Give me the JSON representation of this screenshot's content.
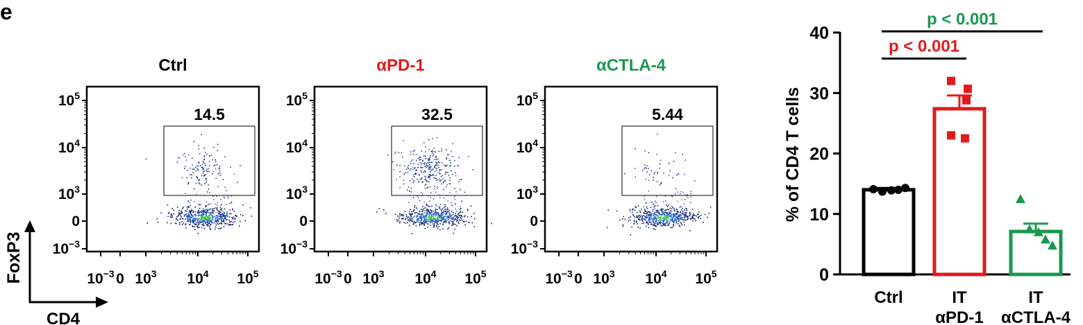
{
  "panel_letter": "e",
  "axis_arrows": {
    "y_label": "FoxP3",
    "x_label": "CD4"
  },
  "chart_data": [
    {
      "type": "scatter",
      "subtype": "flow-cytometry-density",
      "panels": [
        {
          "title": "Ctrl",
          "title_color": "#000000",
          "gate_value": "14.5",
          "gate_fraction": 14.5
        },
        {
          "title": "αPD-1",
          "title_color": "#e31a1c",
          "gate_value": "32.5",
          "gate_fraction": 32.5
        },
        {
          "title": "αCTLA-4",
          "title_color": "#1a9850",
          "gate_value": "5.44",
          "gate_fraction": 5.44
        }
      ],
      "x_ticks": [
        {
          "base": "10",
          "exp": "−3"
        },
        {
          "base": "0",
          "exp": ""
        },
        {
          "base": "10",
          "exp": "3"
        },
        {
          "base": "10",
          "exp": "4"
        },
        {
          "base": "10",
          "exp": "5"
        }
      ],
      "y_ticks": [
        {
          "base": "10",
          "exp": "5"
        },
        {
          "base": "10",
          "exp": "4"
        },
        {
          "base": "10",
          "exp": "3"
        },
        {
          "base": "0",
          "exp": ""
        },
        {
          "base": "10",
          "exp": "−3"
        }
      ],
      "xlabel": "CD4",
      "ylabel": "FoxP3"
    },
    {
      "type": "bar",
      "ylabel": "% of CD4 T cells",
      "ylim": [
        0,
        40
      ],
      "yticks": [
        0,
        10,
        20,
        30,
        40
      ],
      "categories": [
        {
          "line1": "Ctrl",
          "line2": ""
        },
        {
          "line1": "IT",
          "line2": "αPD-1"
        },
        {
          "line1": "IT",
          "line2": "αCTLA-4"
        }
      ],
      "series": [
        {
          "category": "Ctrl",
          "mean": 14.0,
          "sem": 0.3,
          "color": "#000000",
          "marker": "circle",
          "points": [
            14.1,
            13.7,
            13.9,
            14.0,
            14.3
          ]
        },
        {
          "category": "IT αPD-1",
          "mean": 27.4,
          "sem": 2.2,
          "color": "#e31a1c",
          "marker": "square",
          "points": [
            32.0,
            30.7,
            28.8,
            23.0,
            22.5
          ]
        },
        {
          "category": "IT αCTLA-4",
          "mean": 7.1,
          "sem": 1.3,
          "color": "#1a9850",
          "marker": "triangle",
          "points": [
            12.5,
            7.5,
            7.0,
            5.8,
            4.8
          ]
        }
      ],
      "annotations": [
        {
          "text": "p < 0.001",
          "color": "#e31a1c",
          "from": 0,
          "to": 1,
          "level": 35.7
        },
        {
          "text": "p < 0.001",
          "color": "#1a9850",
          "from": 0,
          "to": 2,
          "level": 40.2
        }
      ]
    }
  ]
}
